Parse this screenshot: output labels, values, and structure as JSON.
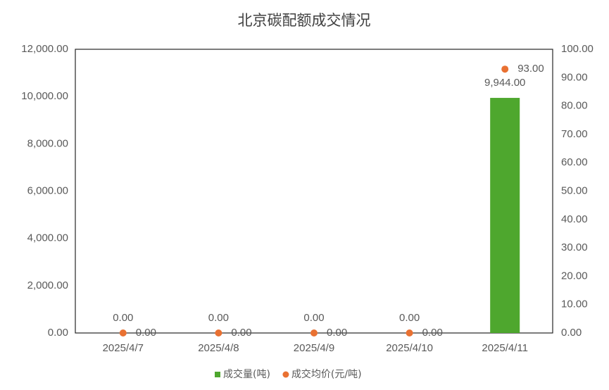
{
  "chart_data": {
    "type": "bar",
    "title": "北京碳配额成交情况",
    "categories": [
      "2025/4/7",
      "2025/4/8",
      "2025/4/9",
      "2025/4/10",
      "2025/4/11"
    ],
    "series": [
      {
        "name": "成交量(吨)",
        "type": "bar",
        "color": "#4ea72e",
        "values": [
          0,
          0,
          0,
          0,
          9944
        ],
        "value_labels": [
          "0.00",
          "0.00",
          "0.00",
          "0.00",
          "9,944.00"
        ]
      },
      {
        "name": "成交均价(元/吨)",
        "type": "scatter",
        "axis": "y2",
        "color": "#e97132",
        "values": [
          0,
          0,
          0,
          0,
          93
        ],
        "value_labels": [
          "0.00",
          "0.00",
          "0.00",
          "0.00",
          "93.00"
        ]
      }
    ],
    "ylim": [
      0,
      12000
    ],
    "yticks": [
      {
        "value": 0,
        "label": "0.00"
      },
      {
        "value": 2000,
        "label": "2,000.00"
      },
      {
        "value": 4000,
        "label": "4,000.00"
      },
      {
        "value": 6000,
        "label": "6,000.00"
      },
      {
        "value": 8000,
        "label": "8,000.00"
      },
      {
        "value": 10000,
        "label": "10,000.00"
      },
      {
        "value": 12000,
        "label": "12,000.00"
      }
    ],
    "y2lim": [
      0,
      100
    ],
    "y2ticks": [
      {
        "value": 0,
        "label": "0.00"
      },
      {
        "value": 10,
        "label": "10.00"
      },
      {
        "value": 20,
        "label": "20.00"
      },
      {
        "value": 30,
        "label": "30.00"
      },
      {
        "value": 40,
        "label": "40.00"
      },
      {
        "value": 50,
        "label": "50.00"
      },
      {
        "value": 60,
        "label": "60.00"
      },
      {
        "value": 70,
        "label": "70.00"
      },
      {
        "value": 80,
        "label": "80.00"
      },
      {
        "value": 90,
        "label": "90.00"
      },
      {
        "value": 100,
        "label": "100.00"
      }
    ],
    "grid": false,
    "legend": "bottom"
  }
}
